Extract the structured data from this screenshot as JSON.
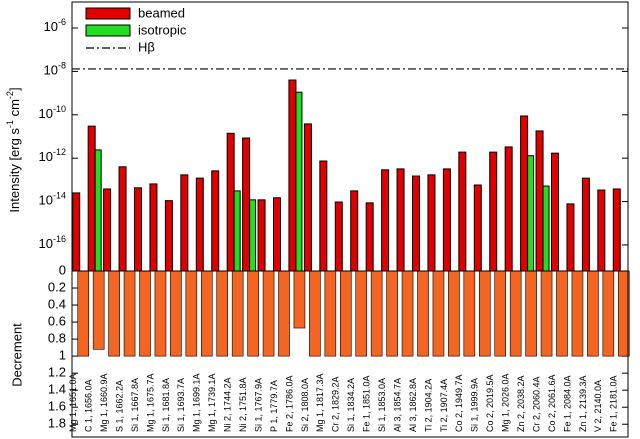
{
  "chart_data": [
    {
      "type": "bar",
      "log_y": true,
      "y_label": "Intensity [erg s-1 cm-2]",
      "ylim": [
        6.3e-18,
        1.58e-05
      ],
      "yticks": [
        {
          "value": 1e-16,
          "label": "10-16"
        },
        {
          "value": 1e-14,
          "label": "10-14"
        },
        {
          "value": 1e-12,
          "label": "10-12"
        },
        {
          "value": 1e-10,
          "label": "10-10"
        },
        {
          "value": 1e-08,
          "label": "10-8"
        },
        {
          "value": 1e-06,
          "label": "10-6"
        }
      ],
      "legend": "top-left",
      "series": [
        {
          "name": "beamed",
          "color": "#e00000",
          "values": [
            2.5e-14,
            3e-11,
            3.8e-14,
            4e-13,
            4.3e-14,
            6.5e-14,
            1.1e-14,
            1.7e-13,
            1.2e-13,
            2.6e-13,
            1.4e-11,
            8.5e-12,
            1.2e-14,
            1.5e-14,
            4e-09,
            3.8e-11,
            7.4e-13,
            9.5e-15,
            3.1e-14,
            8.7e-15,
            2.9e-13,
            3.2e-13,
            1.5e-13,
            1.7e-13,
            3.2e-13,
            1.9e-12,
            5.8e-14,
            1.9e-12,
            3.3e-12,
            8.8e-11,
            1.8e-11,
            1.7e-12,
            7.8e-15,
            1.2e-13,
            3.4e-14,
            3.8e-14
          ]
        },
        {
          "name": "isotropic",
          "color": "#22dd22",
          "values": [
            null,
            2.4e-12,
            null,
            null,
            null,
            null,
            null,
            null,
            null,
            null,
            3.1e-14,
            1.2e-14,
            null,
            null,
            1.1e-09,
            null,
            null,
            null,
            null,
            null,
            null,
            null,
            null,
            null,
            null,
            null,
            null,
            null,
            null,
            1.3e-12,
            5.2e-14,
            null,
            null,
            null,
            null,
            null
          ]
        }
      ],
      "hlines": [
        {
          "name": "Hβ",
          "value": 1.3e-08,
          "color": "#000000",
          "style": "dash-dot"
        }
      ]
    },
    {
      "type": "bar",
      "y_label": "Decrement",
      "inverted_y": true,
      "ylim": [
        0,
        1.95
      ],
      "yticks": [
        0,
        0.2,
        0.4,
        0.6,
        0.8,
        1,
        1.2,
        1.4,
        1.6,
        1.8
      ],
      "color": "#f26522",
      "categories": [
        "Mg 1, 1651.0A",
        "C 1, 1656.0A",
        "Mg 1, 1660.9A",
        "S 1, 1662.2A",
        "Si 1, 1667.8A",
        "Mg 1, 1675.7A",
        "Si 1, 1681.8A",
        "Si 1, 1693.7A",
        "Mg 1, 1699.1A",
        "Mg 1, 1739.1A",
        "Ni 2, 1744.2A",
        "Ni 2, 1751.8A",
        "Si 1, 1767.9A",
        "P 1, 1779.7A",
        "Fe 2, 1786.0A",
        "Si 2, 1808.0A",
        "Mg 1, 1817.3A",
        "Cr 2, 1829.2A",
        "Si 1, 1834.2A",
        "Fe 1, 1851.0A",
        "Si 1, 1853.0A",
        "Al 3, 1854.7A",
        "Al 3, 1862.8A",
        "Ti 2, 1904.2A",
        "Ti 2, 1907.4A",
        "Co 2, 1949.7A",
        "Si 1, 1999.9A",
        "Co 2, 2019.5A",
        "Mg 1, 2026.0A",
        "Zn 2, 2038.2A",
        "Cr 2, 2060.4A",
        "Co 2, 2061.6A",
        "Fe 1, 2084.0A",
        "Zn 1, 2139.3A",
        "V 2, 2140.0A",
        "Fe 1, 2181.0A"
      ],
      "values": [
        1,
        0.92,
        1,
        1,
        1,
        1,
        1,
        1,
        1,
        1,
        1,
        1,
        1,
        1,
        0.67,
        1,
        1,
        1,
        1,
        1,
        1,
        1,
        1,
        1,
        1,
        1,
        1,
        1,
        1,
        1,
        1,
        1,
        1,
        1,
        1,
        1
      ]
    }
  ]
}
